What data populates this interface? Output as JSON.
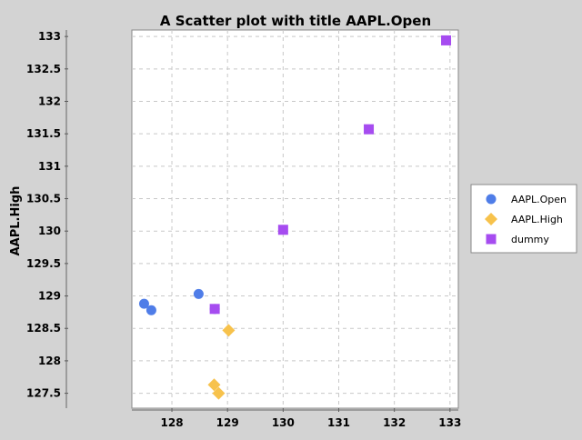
{
  "chart_data": {
    "type": "scatter",
    "title": "A Scatter plot with title AAPL.Open",
    "xlabel": "",
    "ylabel": "AAPL.High",
    "xlim": [
      127.28,
      133.15
    ],
    "ylim": [
      127.27,
      133.1
    ],
    "x_ticks": [
      128,
      129,
      130,
      131,
      132,
      133
    ],
    "x_tick_labels": [
      "128",
      "129",
      "130",
      "131",
      "132",
      "133"
    ],
    "y_ticks": [
      127.5,
      128,
      128.5,
      129,
      129.5,
      130,
      130.5,
      131,
      131.5,
      132,
      132.5,
      133
    ],
    "y_tick_labels": [
      "127.5",
      "128",
      "128.5",
      "129",
      "129.5",
      "130",
      "130.5",
      "131",
      "131.5",
      "132",
      "132.5",
      "133"
    ],
    "grid": true,
    "legend_position": "right",
    "series": [
      {
        "name": "AAPL.Open",
        "marker": "circle",
        "color": "#4f7de8",
        "points": [
          [
            127.5,
            128.88
          ],
          [
            127.63,
            128.78
          ],
          [
            128.48,
            129.03
          ],
          [
            128.77,
            128.8
          ]
        ]
      },
      {
        "name": "AAPL.High",
        "marker": "diamond",
        "color": "#f7c24c",
        "points": [
          [
            129.02,
            128.47
          ],
          [
            128.76,
            127.63
          ],
          [
            128.84,
            127.5
          ]
        ]
      },
      {
        "name": "dummy",
        "marker": "square",
        "color": "#a64cf0",
        "points": [
          [
            128.77,
            128.8
          ],
          [
            130.0,
            130.02
          ],
          [
            131.54,
            131.57
          ],
          [
            132.93,
            132.94
          ]
        ]
      }
    ]
  }
}
